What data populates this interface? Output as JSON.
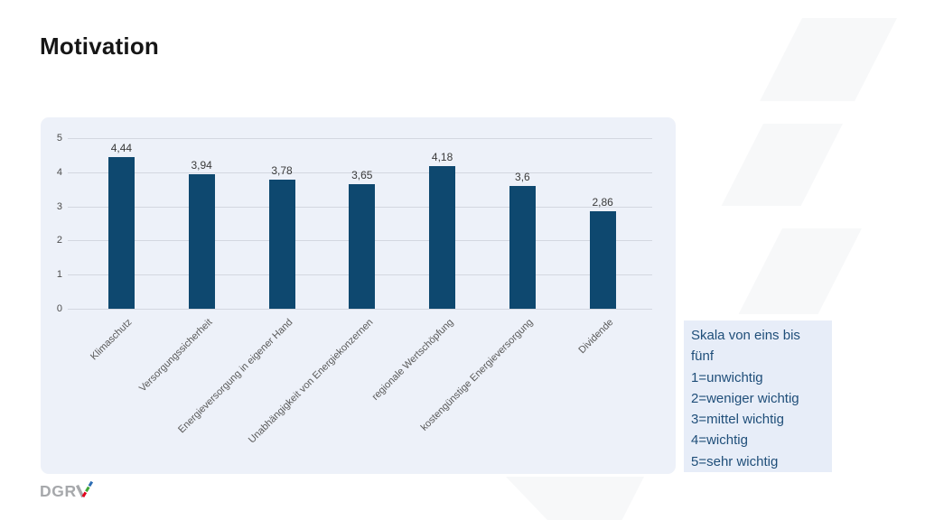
{
  "slide": {
    "title": "Motivation"
  },
  "chart_data": {
    "type": "bar",
    "title": "",
    "xlabel": "",
    "ylabel": "",
    "categories": [
      "Klimaschutz",
      "Versorgungssicherheit",
      "Energieversorgung in eigener Hand",
      "Unabhängigkeit von Energiekonzernen",
      "regionale Wertschöpfung",
      "kostengünstige Energieversorgung",
      "Dividende"
    ],
    "values": [
      4.44,
      3.94,
      3.78,
      3.65,
      4.18,
      3.6,
      2.86
    ],
    "value_labels": [
      "4,44",
      "3,94",
      "3,78",
      "3,65",
      "4,18",
      "3,6",
      "2,86"
    ],
    "ylim": [
      0,
      5
    ],
    "ytick_step": 1,
    "grid": true,
    "legend_position": "none",
    "bar_color": "#0e486f",
    "panel_bg": "#edf1f9"
  },
  "legend": {
    "scale_title": "Skala von eins bis fünf",
    "lines": [
      "1=unwichtig",
      "2=weniger wichtig",
      "3=mittel wichtig",
      "4=wichtig",
      "5=sehr wichtig"
    ],
    "text_color": "#1f4e79",
    "bg_color": "#e7edf8"
  },
  "logo": {
    "text": "DGR",
    "letter_v": "V",
    "gray": "#a6a8ab",
    "accent_red": "#e2001a",
    "accent_green": "#3fa535",
    "accent_blue": "#2d6db4"
  }
}
